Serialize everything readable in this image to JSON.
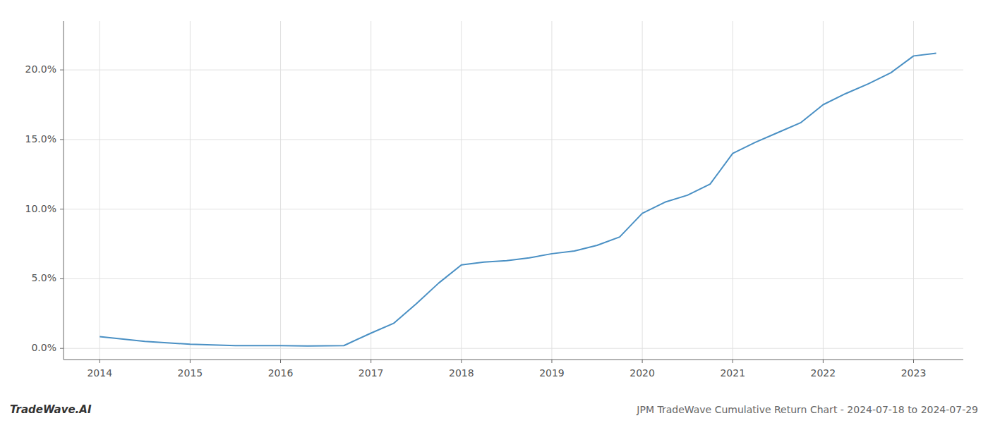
{
  "chart_data": {
    "type": "line",
    "title": "JPM TradeWave Cumulative Return Chart - 2024-07-18 to 2024-07-29",
    "annotations": [
      "TradeWave.AI"
    ],
    "x": [
      2014,
      2014.5,
      2015,
      2015.5,
      2016,
      2016.3,
      2016.7,
      2017,
      2017.25,
      2017.5,
      2017.75,
      2018,
      2018.25,
      2018.5,
      2018.75,
      2019,
      2019.25,
      2019.5,
      2019.75,
      2020,
      2020.25,
      2020.5,
      2020.75,
      2021,
      2021.25,
      2021.5,
      2021.75,
      2022,
      2022.25,
      2022.5,
      2022.75,
      2023,
      2023.25
    ],
    "values": [
      0.0085,
      0.005,
      0.003,
      0.002,
      0.002,
      0.0018,
      0.002,
      0.011,
      0.018,
      0.032,
      0.047,
      0.06,
      0.062,
      0.063,
      0.065,
      0.068,
      0.07,
      0.074,
      0.08,
      0.097,
      0.105,
      0.11,
      0.118,
      0.14,
      0.148,
      0.155,
      0.162,
      0.175,
      0.183,
      0.19,
      0.198,
      0.21,
      0.212
    ],
    "color": "#4a90c4",
    "xlim": [
      2013.6,
      2023.55
    ],
    "xticks": [
      2014,
      2015,
      2016,
      2017,
      2018,
      2019,
      2020,
      2021,
      2022,
      2023
    ],
    "ylim": [
      -0.008,
      0.235
    ],
    "yticks": [
      {
        "value": 0.0,
        "label": "0.0%"
      },
      {
        "value": 0.05,
        "label": "5.0%"
      },
      {
        "value": 0.1,
        "label": "10.0%"
      },
      {
        "value": 0.15,
        "label": "15.0%"
      },
      {
        "value": 0.2,
        "label": "20.0%"
      }
    ],
    "grid": true
  }
}
